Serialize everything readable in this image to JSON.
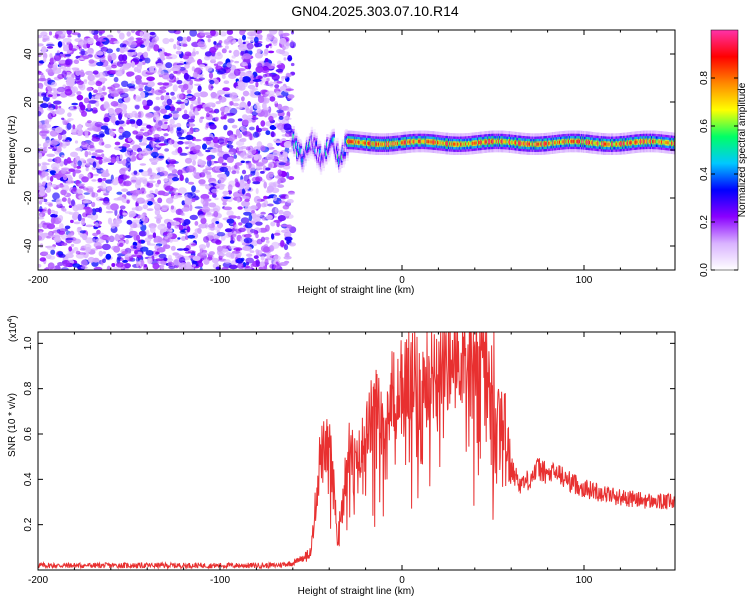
{
  "figure": {
    "title": "GN04.2025.303.07.10.R14"
  },
  "chart_data": [
    {
      "type": "heatmap",
      "name": "spectrogram",
      "xlabel": "Height of straight line (km)",
      "ylabel": "Frequency (Hz)",
      "xlim": [
        -200,
        150
      ],
      "ylim": [
        -50,
        50
      ],
      "x_ticks": [
        -200,
        -100,
        0,
        100
      ],
      "x_tick_labels": [
        "-200",
        "-100",
        "0",
        "100"
      ],
      "y_ticks": [
        -40,
        -20,
        0,
        20,
        40
      ],
      "y_tick_labels": [
        "-40",
        "-20",
        "0",
        "20",
        "40"
      ],
      "colorbar": {
        "label": "Normalized spectral amplitude",
        "range": [
          0,
          1
        ],
        "ticks": [
          0.0,
          0.2,
          0.4,
          0.6,
          0.8
        ],
        "tick_labels": [
          "0.0",
          "0.2",
          "0.4",
          "0.6",
          "0.8"
        ],
        "colormap": [
          "#ffffff",
          "#d9b3ff",
          "#8a00ff",
          "#0000ff",
          "#00c8ff",
          "#00ff66",
          "#ffff00",
          "#ff8800",
          "#ff0000",
          "#ff33aa"
        ]
      },
      "regions": [
        {
          "x_range": [
            -200,
            -60
          ],
          "freq_range": [
            -50,
            50
          ],
          "amplitude_range": [
            0.05,
            0.3
          ],
          "description": "noise"
        },
        {
          "x_range": [
            -60,
            -30
          ],
          "freq_center": 0,
          "amplitude_range": [
            0.2,
            0.6
          ]
        },
        {
          "x_range": [
            -30,
            150
          ],
          "freq_center": 3,
          "amplitude_range": [
            0.6,
            1.0
          ]
        }
      ]
    },
    {
      "type": "line",
      "name": "snr",
      "xlabel": "Height of straight line (km)",
      "ylabel": "SNR (10 * v/v)",
      "y_multiplier": "(x10",
      "y_multiplier_exp": "4",
      "y_multiplier_close": ")",
      "xlim": [
        -200,
        150
      ],
      "ylim": [
        0,
        1.05
      ],
      "x_ticks": [
        -200,
        -100,
        0,
        100
      ],
      "x_tick_labels": [
        "-200",
        "-100",
        "0",
        "100"
      ],
      "y_ticks": [
        0.2,
        0.4,
        0.6,
        0.8,
        1.0
      ],
      "y_tick_labels": [
        "0.2",
        "0.4",
        "0.6",
        "0.8",
        "1.0"
      ],
      "color": "#e83030",
      "series": [
        {
          "x": [
            -200,
            -150,
            -100,
            -70,
            -60,
            -50,
            -45,
            -40,
            -35,
            -30,
            -25,
            -20,
            -15,
            -10,
            -5,
            0,
            5,
            10,
            15,
            20,
            25,
            30,
            35,
            40,
            45,
            50,
            55,
            60,
            65,
            70,
            75,
            80,
            85,
            90,
            95,
            100,
            110,
            120,
            130,
            140,
            150
          ],
          "y": [
            0.02,
            0.02,
            0.02,
            0.02,
            0.03,
            0.08,
            0.5,
            0.55,
            0.15,
            0.55,
            0.45,
            0.6,
            0.7,
            0.68,
            0.78,
            0.8,
            0.85,
            0.82,
            0.88,
            0.9,
            0.95,
            0.98,
            1.0,
            1.0,
            0.95,
            0.85,
            0.7,
            0.45,
            0.38,
            0.4,
            0.45,
            0.42,
            0.43,
            0.4,
            0.38,
            0.36,
            0.34,
            0.32,
            0.31,
            0.3,
            0.3
          ],
          "noise": "high-frequency jitter"
        }
      ]
    }
  ]
}
